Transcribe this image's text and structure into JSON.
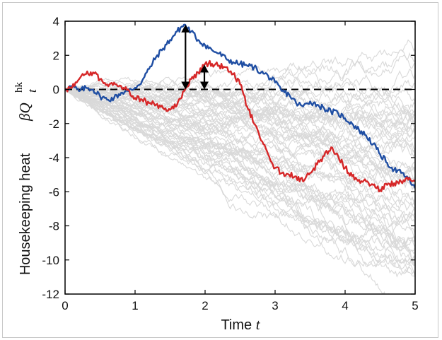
{
  "chart_data": {
    "type": "line",
    "xlabel": "Time",
    "xlabel_var": "t",
    "ylabel": "Housekeeping heat",
    "ylabel_math": {
      "base": "βQ",
      "sup": "hk",
      "sub": "t"
    },
    "xlim": [
      0,
      5
    ],
    "ylim": [
      -12,
      4
    ],
    "xticks": [
      0,
      1,
      2,
      3,
      4,
      5
    ],
    "yticks": [
      4,
      2,
      0,
      -2,
      -4,
      -6,
      -8,
      -10,
      -12
    ],
    "grid": false,
    "reference_line": {
      "y": 0,
      "style": "dashed",
      "color": "#000000"
    },
    "background_trajectories": {
      "count": 60,
      "color": "#d9d9d9",
      "start": 0,
      "end_range": [
        -11.5,
        1.5
      ]
    },
    "series": [
      {
        "color": "#1f4ea3",
        "points": [
          [
            0,
            0
          ],
          [
            0.1,
            0.2
          ],
          [
            0.2,
            -0.1
          ],
          [
            0.3,
            0.1
          ],
          [
            0.4,
            0.0
          ],
          [
            0.5,
            -0.4
          ],
          [
            0.6,
            -0.6
          ],
          [
            0.7,
            -0.5
          ],
          [
            0.8,
            -0.2
          ],
          [
            0.9,
            -0.1
          ],
          [
            1.0,
            0.1
          ],
          [
            1.1,
            0.5
          ],
          [
            1.2,
            1.2
          ],
          [
            1.3,
            1.9
          ],
          [
            1.4,
            2.4
          ],
          [
            1.5,
            2.9
          ],
          [
            1.6,
            3.4
          ],
          [
            1.7,
            3.8
          ],
          [
            1.8,
            3.4
          ],
          [
            1.9,
            2.9
          ],
          [
            2.0,
            2.6
          ],
          [
            2.1,
            2.3
          ],
          [
            2.2,
            2.1
          ],
          [
            2.3,
            1.8
          ],
          [
            2.4,
            1.6
          ],
          [
            2.5,
            1.5
          ],
          [
            2.6,
            1.4
          ],
          [
            2.7,
            1.3
          ],
          [
            2.8,
            1.0
          ],
          [
            2.9,
            0.8
          ],
          [
            3.0,
            0.4
          ],
          [
            3.1,
            -0.1
          ],
          [
            3.2,
            -0.3
          ],
          [
            3.3,
            -0.8
          ],
          [
            3.4,
            -1.0
          ],
          [
            3.5,
            -0.7
          ],
          [
            3.6,
            -0.9
          ],
          [
            3.7,
            -1.1
          ],
          [
            3.8,
            -1.3
          ],
          [
            3.9,
            -1.4
          ],
          [
            4.0,
            -1.7
          ],
          [
            4.1,
            -2.0
          ],
          [
            4.2,
            -2.4
          ],
          [
            4.3,
            -2.7
          ],
          [
            4.4,
            -3.2
          ],
          [
            4.5,
            -3.8
          ],
          [
            4.6,
            -4.3
          ],
          [
            4.7,
            -4.7
          ],
          [
            4.8,
            -4.9
          ],
          [
            4.9,
            -5.2
          ],
          [
            5.0,
            -5.8
          ]
        ]
      },
      {
        "color": "#d62728",
        "points": [
          [
            0,
            0
          ],
          [
            0.1,
            0.1
          ],
          [
            0.2,
            0.6
          ],
          [
            0.3,
            0.9
          ],
          [
            0.4,
            1.0
          ],
          [
            0.5,
            0.6
          ],
          [
            0.6,
            0.3
          ],
          [
            0.7,
            0.4
          ],
          [
            0.8,
            0.2
          ],
          [
            0.9,
            0.0
          ],
          [
            1.0,
            -0.5
          ],
          [
            1.1,
            -0.6
          ],
          [
            1.2,
            -0.8
          ],
          [
            1.3,
            -0.9
          ],
          [
            1.4,
            -1.1
          ],
          [
            1.5,
            -1.2
          ],
          [
            1.6,
            -0.9
          ],
          [
            1.7,
            -0.1
          ],
          [
            1.8,
            0.6
          ],
          [
            1.9,
            1.0
          ],
          [
            2.0,
            1.5
          ],
          [
            2.1,
            1.5
          ],
          [
            2.2,
            1.4
          ],
          [
            2.3,
            1.3
          ],
          [
            2.4,
            0.9
          ],
          [
            2.5,
            0.3
          ],
          [
            2.6,
            -1.0
          ],
          [
            2.7,
            -2.0
          ],
          [
            2.8,
            -3.0
          ],
          [
            2.9,
            -3.8
          ],
          [
            3.0,
            -4.6
          ],
          [
            3.1,
            -4.9
          ],
          [
            3.2,
            -5.0
          ],
          [
            3.3,
            -5.1
          ],
          [
            3.4,
            -5.4
          ],
          [
            3.5,
            -4.9
          ],
          [
            3.6,
            -4.4
          ],
          [
            3.7,
            -3.9
          ],
          [
            3.8,
            -3.4
          ],
          [
            3.9,
            -3.9
          ],
          [
            4.0,
            -4.6
          ],
          [
            4.1,
            -5.1
          ],
          [
            4.2,
            -5.3
          ],
          [
            4.3,
            -5.4
          ],
          [
            4.4,
            -5.6
          ],
          [
            4.5,
            -5.9
          ],
          [
            4.6,
            -5.6
          ],
          [
            4.7,
            -5.5
          ],
          [
            4.8,
            -5.4
          ],
          [
            4.9,
            -5.3
          ],
          [
            5.0,
            -5.4
          ]
        ]
      }
    ],
    "annotations": [
      {
        "type": "double-arrow",
        "x": 1.72,
        "y1": 0,
        "y2": 3.8
      },
      {
        "type": "double-arrow",
        "x": 1.99,
        "y1": 0,
        "y2": 1.45
      }
    ]
  }
}
